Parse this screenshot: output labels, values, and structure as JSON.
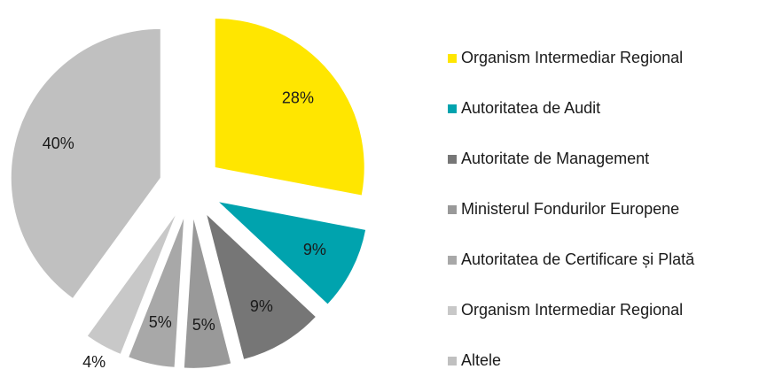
{
  "chart_data": {
    "type": "pie",
    "categories": [
      "Organism Intermediar Regional",
      "Autoritatea de Audit",
      "Autoritate de Management",
      "Ministerul Fondurilor Europene",
      "Autoritatea de Certificare și Plată",
      "Organism Intermediar Regional",
      "Altele"
    ],
    "values": [
      28,
      9,
      9,
      5,
      5,
      4,
      40
    ],
    "value_labels": [
      "28%",
      "9%",
      "9%",
      "5%",
      "5%",
      "4%",
      "40%"
    ],
    "colors": [
      "#ffe600",
      "#00a3ae",
      "#767676",
      "#999999",
      "#a8a8a8",
      "#c8c8c8",
      "#c0c0c0"
    ],
    "legend": "right"
  }
}
